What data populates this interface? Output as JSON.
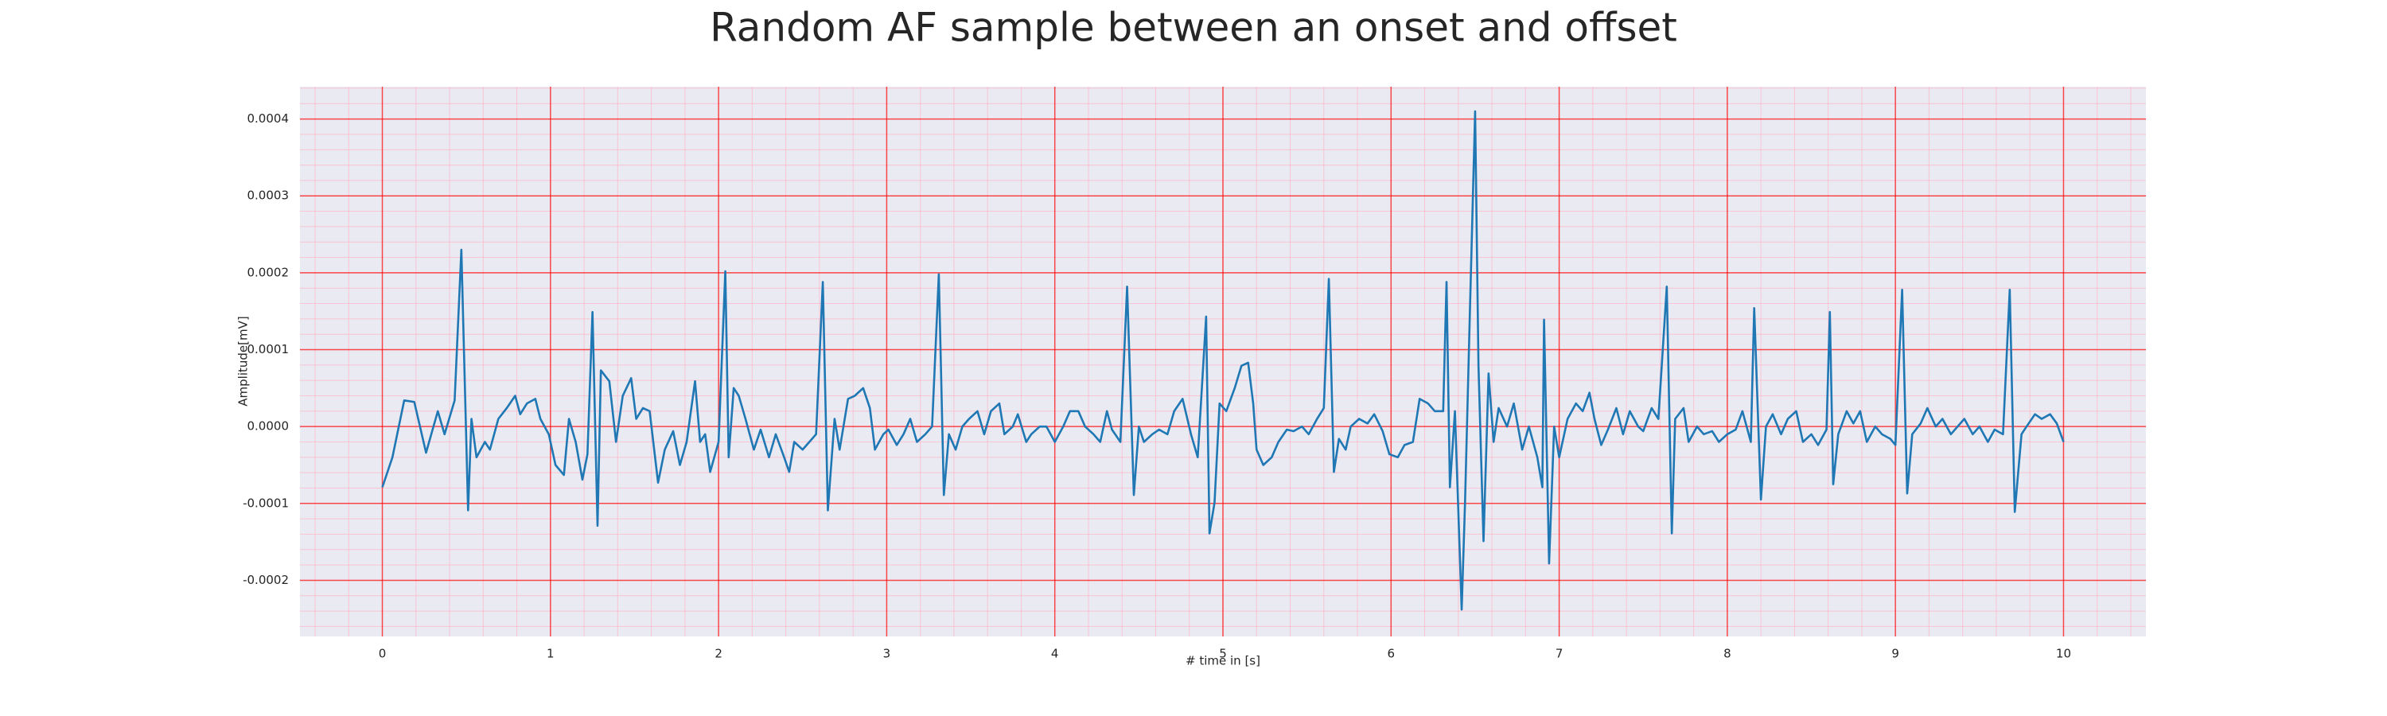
{
  "chart_data": {
    "type": "line",
    "title": "Random AF sample between an onset and offset",
    "xlabel": "# time in [s]",
    "ylabel": "Amplitude[mV]",
    "xlim": [
      -0.49,
      10.49
    ],
    "ylim": [
      -0.000273,
      0.000442
    ],
    "xticks": [
      0,
      1,
      2,
      3,
      4,
      5,
      6,
      7,
      8,
      9,
      10
    ],
    "yticks": [
      -0.0002,
      -0.0001,
      {
        "value": 0,
        "label": "0.0000"
      },
      0.0001,
      0.0002,
      0.0003,
      0.0004
    ],
    "grid": true,
    "minor_grid": true,
    "grid_color": "#ff0000",
    "minor_grid_color": "#ffb3c6",
    "background": "#eaeaf2",
    "x": [
      0,
      0.06,
      0.13,
      0.19,
      0.26,
      0.33,
      0.37,
      0.43,
      0.47,
      0.51,
      0.53,
      0.56,
      0.61,
      0.64,
      0.69,
      0.74,
      0.79,
      0.82,
      0.86,
      0.91,
      0.94,
      0.99,
      1.03,
      1.08,
      1.11,
      1.15,
      1.19,
      1.22,
      1.25,
      1.28,
      1.3,
      1.35,
      1.39,
      1.43,
      1.48,
      1.51,
      1.55,
      1.59,
      1.64,
      1.68,
      1.73,
      1.77,
      1.81,
      1.86,
      1.89,
      1.92,
      1.95,
      2.0,
      2.04,
      2.06,
      2.09,
      2.12,
      2.16,
      2.21,
      2.25,
      2.3,
      2.34,
      2.39,
      2.42,
      2.45,
      2.5,
      2.54,
      2.58,
      2.62,
      2.65,
      2.69,
      2.72,
      2.77,
      2.81,
      2.86,
      2.9,
      2.93,
      2.98,
      3.01,
      3.06,
      3.1,
      3.14,
      3.18,
      3.23,
      3.27,
      3.31,
      3.34,
      3.37,
      3.41,
      3.45,
      3.49,
      3.54,
      3.58,
      3.62,
      3.67,
      3.7,
      3.75,
      3.78,
      3.83,
      3.86,
      3.91,
      3.95,
      4.0,
      4.05,
      4.09,
      4.14,
      4.18,
      4.23,
      4.27,
      4.31,
      4.34,
      4.39,
      4.43,
      4.47,
      4.5,
      4.53,
      4.58,
      4.62,
      4.67,
      4.71,
      4.76,
      4.81,
      4.85,
      4.9,
      4.92,
      4.95,
      4.98,
      5.02,
      5.07,
      5.11,
      5.15,
      5.18,
      5.2,
      5.24,
      5.29,
      5.33,
      5.38,
      5.42,
      5.47,
      5.51,
      5.56,
      5.6,
      5.63,
      5.66,
      5.69,
      5.73,
      5.76,
      5.81,
      5.86,
      5.9,
      5.95,
      5.99,
      6.04,
      6.08,
      6.13,
      6.17,
      6.22,
      6.26,
      6.31,
      6.33,
      6.35,
      6.38,
      6.42,
      6.44,
      6.47,
      6.5,
      6.52,
      6.55,
      6.58,
      6.61,
      6.64,
      6.69,
      6.73,
      6.78,
      6.82,
      6.87,
      6.9,
      6.91,
      6.94,
      6.97,
      7.0,
      7.05,
      7.1,
      7.14,
      7.18,
      7.21,
      7.25,
      7.29,
      7.34,
      7.38,
      7.42,
      7.47,
      7.5,
      7.55,
      7.59,
      7.64,
      7.67,
      7.69,
      7.74,
      7.77,
      7.82,
      7.86,
      7.91,
      7.95,
      8.0,
      8.05,
      8.09,
      8.14,
      8.16,
      8.2,
      8.23,
      8.27,
      8.32,
      8.36,
      8.41,
      8.45,
      8.5,
      8.54,
      8.59,
      8.61,
      8.63,
      8.66,
      8.71,
      8.75,
      8.79,
      8.83,
      8.88,
      8.92,
      8.97,
      9.0,
      9.04,
      9.07,
      9.1,
      9.15,
      9.19,
      9.24,
      9.28,
      9.33,
      9.37,
      9.41,
      9.46,
      9.5,
      9.55,
      9.59,
      9.64,
      9.68,
      9.71,
      9.75,
      9.78,
      9.83,
      9.87,
      9.92,
      9.96,
      10.0
    ],
    "series": [
      {
        "color": "#1f77b4",
        "values": [
          -7.9e-05,
          -4e-05,
          3.4e-05,
          3.2e-05,
          -3.4e-05,
          2e-05,
          -1e-05,
          3.4e-05,
          0.00023,
          -0.000109,
          1e-05,
          -4e-05,
          -2e-05,
          -3e-05,
          1e-05,
          2.4e-05,
          4e-05,
          1.6e-05,
          3e-05,
          3.6e-05,
          1e-05,
          -1e-05,
          -5e-05,
          -6.3e-05,
          1e-05,
          -2e-05,
          -6.9e-05,
          -3.6e-05,
          0.000149,
          -0.000129,
          7.3e-05,
          5.9e-05,
          -2e-05,
          4e-05,
          6.3e-05,
          1e-05,
          2.4e-05,
          2e-05,
          -7.3e-05,
          -3e-05,
          -6e-06,
          -5e-05,
          -2e-05,
          5.9e-05,
          -2e-05,
          -1e-05,
          -5.9e-05,
          -2e-05,
          0.000202,
          -4e-05,
          5e-05,
          4e-05,
          1e-05,
          -3e-05,
          -4e-06,
          -4e-05,
          -1e-05,
          -4e-05,
          -5.9e-05,
          -2e-05,
          -3e-05,
          -2e-05,
          -1e-05,
          0.000188,
          -0.000109,
          1e-05,
          -3e-05,
          3.6e-05,
          4e-05,
          5e-05,
          2.4e-05,
          -3e-05,
          -1e-05,
          -4e-06,
          -2.4e-05,
          -1e-05,
          1e-05,
          -2e-05,
          -1e-05,
          0,
          0.000198,
          -8.9e-05,
          -1e-05,
          -3e-05,
          0,
          1e-05,
          2e-05,
          -1e-05,
          2e-05,
          3e-05,
          -1e-05,
          0,
          1.6e-05,
          -2e-05,
          -1e-05,
          0,
          0,
          -2e-05,
          0,
          2e-05,
          2e-05,
          0,
          -1e-05,
          -2e-05,
          2e-05,
          -4e-06,
          -2e-05,
          0.000182,
          -8.9e-05,
          0,
          -2e-05,
          -1e-05,
          -4e-06,
          -1e-05,
          2e-05,
          3.6e-05,
          -1e-05,
          -4e-05,
          0.000143,
          -0.000139,
          -9.9e-05,
          3e-05,
          2e-05,
          5e-05,
          7.9e-05,
          8.3e-05,
          3e-05,
          -3e-05,
          -5e-05,
          -4e-05,
          -2e-05,
          -4e-06,
          -6e-06,
          0,
          -1e-05,
          1e-05,
          2.4e-05,
          0.000192,
          -5.9e-05,
          -1.6e-05,
          -3e-05,
          0,
          1e-05,
          4e-06,
          1.6e-05,
          -6e-06,
          -3.6e-05,
          -4e-05,
          -2.4e-05,
          -2e-05,
          3.6e-05,
          3e-05,
          2e-05,
          2e-05,
          0.000188,
          -7.9e-05,
          2e-05,
          -0.000238,
          -9.9e-05,
          0.000158,
          0.00041,
          7.9e-05,
          -0.000149,
          6.9e-05,
          -2e-05,
          2.4e-05,
          0,
          3e-05,
          -3e-05,
          0,
          -4e-05,
          -7.9e-05,
          0.000139,
          -0.000178,
          0,
          -4e-05,
          1e-05,
          3e-05,
          2e-05,
          4.4e-05,
          1e-05,
          -2.4e-05,
          -4e-06,
          2.4e-05,
          -1e-05,
          2e-05,
          0,
          -6e-06,
          2.4e-05,
          1e-05,
          0.000182,
          -0.000139,
          1e-05,
          2.4e-05,
          -2e-05,
          0,
          -1e-05,
          -6e-06,
          -2e-05,
          -1e-05,
          -4e-06,
          2e-05,
          -2e-05,
          0.000154,
          -9.5e-05,
          0,
          1.6e-05,
          -1e-05,
          1e-05,
          2e-05,
          -2e-05,
          -1e-05,
          -2.4e-05,
          -4e-06,
          0.000149,
          -7.5e-05,
          -1e-05,
          2e-05,
          4e-06,
          2e-05,
          -2e-05,
          0,
          -1e-05,
          -1.6e-05,
          -2.4e-05,
          0.000178,
          -8.7e-05,
          -1e-05,
          4e-06,
          2.4e-05,
          0,
          1e-05,
          -1e-05,
          0,
          1e-05,
          -1e-05,
          0,
          -2e-05,
          -4e-06,
          -1e-05,
          0.000178,
          -0.000111,
          -1e-05,
          0,
          1.6e-05,
          1e-05,
          1.6e-05,
          4e-06,
          -2e-05
        ]
      }
    ]
  }
}
